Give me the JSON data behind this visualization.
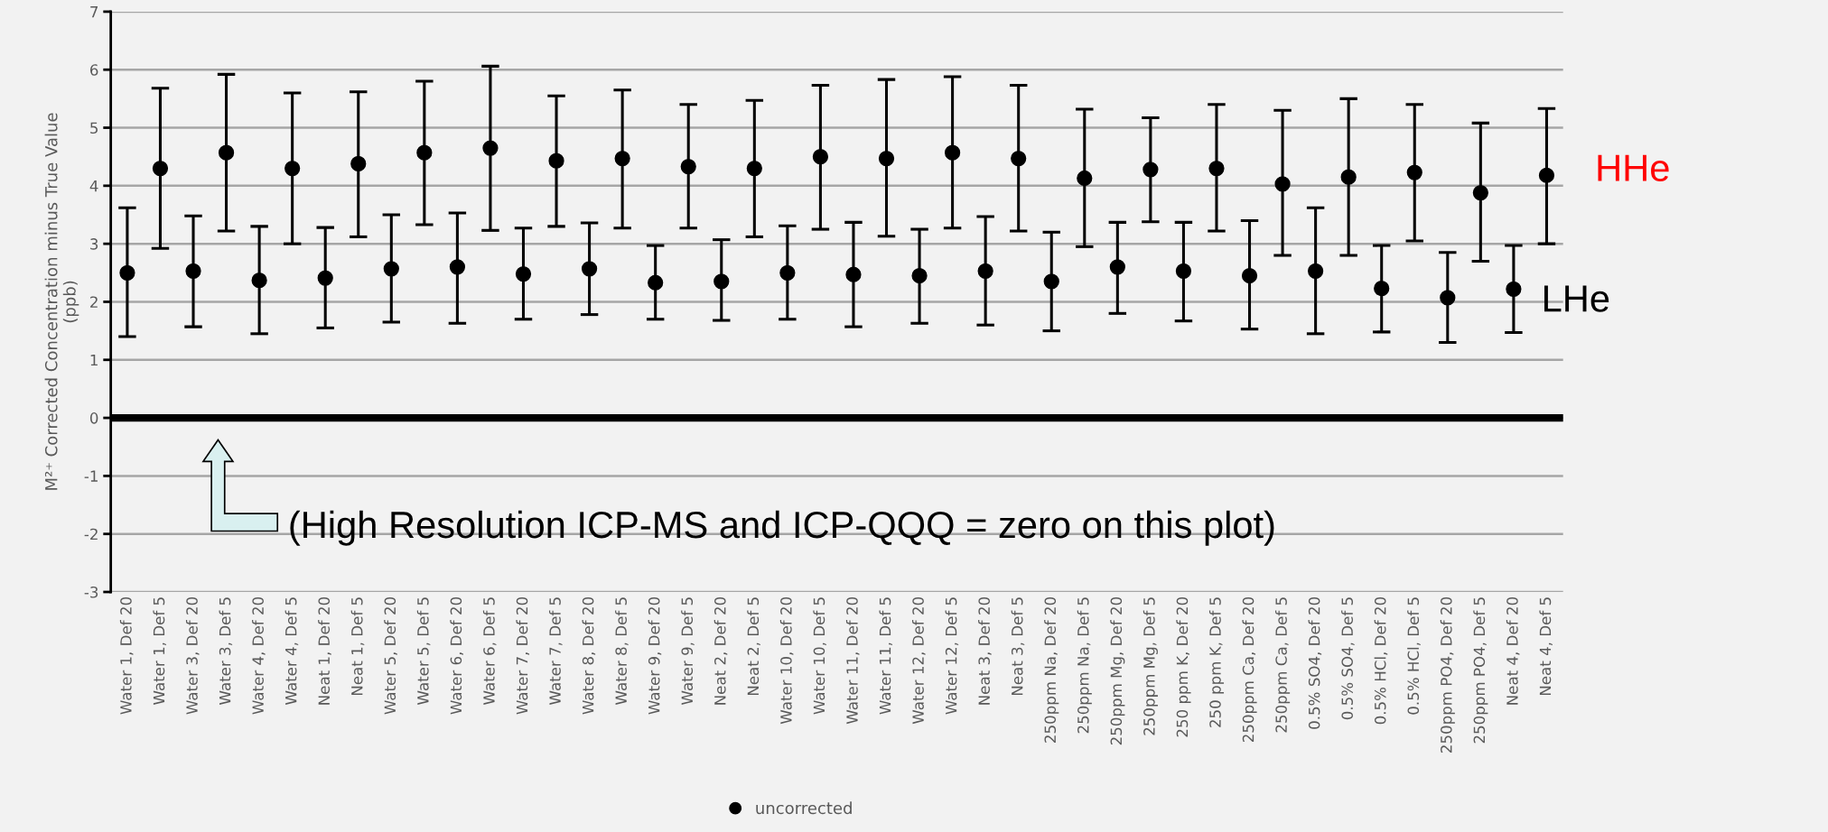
{
  "chart_data": {
    "type": "scatter",
    "ylabel": "M²⁺ Corrected Concentration minus True Value\n(ppb)",
    "categories": [
      "Water 1, Def 20",
      "Water 1, Def 5",
      "Water 3, Def 20",
      "Water 3, Def 5",
      "Water 4, Def 20",
      "Water 4, Def 5",
      "Neat 1, Def 20",
      "Neat 1, Def 5",
      "Water 5, Def 20",
      "Water 5, Def 5",
      "Water 6, Def 20",
      "Water 6, Def 5",
      "Water 7, Def 20",
      "Water 7, Def 5",
      "Water 8, Def 20",
      "Water 8, Def 5",
      "Water 9, Def 20",
      "Water 9, Def 5",
      "Neat 2, Def 20",
      "Neat 2, Def 5",
      "Water 10, Def 20",
      "Water 10, Def 5",
      "Water 11, Def 20",
      "Water 11, Def 5",
      "Water 12, Def 20",
      "Water 12, Def 5",
      "Neat 3, Def 20",
      "Neat 3, Def 5",
      "250ppm Na, Def 20",
      "250ppm Na, Def 5",
      "250ppm Mg, Def 20",
      "250ppm Mg, Def 5",
      "250 ppm K, Def 20",
      "250 ppm K, Def 5",
      "250ppm Ca, Def 20",
      "250ppm Ca, Def 5",
      "0.5% SO4, Def 20",
      "0.5% SO4, Def 5",
      "0.5% HCl, Def 20",
      "0.5% HCl, Def 5",
      "250ppm PO4, Def 20",
      "250ppm PO4, Def 5",
      "Neat 4, Def 20",
      "Neat 4, Def 5"
    ],
    "series": [
      {
        "name": "uncorrected",
        "color": "#000000",
        "values": [
          2.5,
          4.3,
          2.53,
          4.57,
          2.37,
          4.3,
          2.41,
          4.38,
          2.57,
          4.57,
          2.6,
          4.65,
          2.48,
          4.43,
          2.57,
          4.47,
          2.33,
          4.33,
          2.35,
          4.3,
          2.5,
          4.5,
          2.47,
          4.47,
          2.45,
          4.57,
          2.53,
          4.47,
          2.35,
          4.13,
          2.6,
          4.28,
          2.53,
          4.3,
          2.45,
          4.03,
          2.53,
          4.15,
          2.23,
          4.23,
          2.07,
          3.88,
          2.22,
          4.18
        ],
        "errors": [
          [
            1.4,
            3.62
          ],
          [
            2.92,
            5.68
          ],
          [
            1.57,
            3.48
          ],
          [
            3.22,
            5.92
          ],
          [
            1.45,
            3.3
          ],
          [
            3.0,
            5.6
          ],
          [
            1.55,
            3.28
          ],
          [
            3.12,
            5.62
          ],
          [
            1.65,
            3.5
          ],
          [
            3.33,
            5.8
          ],
          [
            1.63,
            3.53
          ],
          [
            3.23,
            6.06
          ],
          [
            1.7,
            3.27
          ],
          [
            3.3,
            5.55
          ],
          [
            1.78,
            3.36
          ],
          [
            3.27,
            5.65
          ],
          [
            1.7,
            2.97
          ],
          [
            3.27,
            5.4
          ],
          [
            1.68,
            3.07
          ],
          [
            3.12,
            5.47
          ],
          [
            1.7,
            3.31
          ],
          [
            3.25,
            5.73
          ],
          [
            1.57,
            3.37
          ],
          [
            3.13,
            5.83
          ],
          [
            1.63,
            3.25
          ],
          [
            3.27,
            5.88
          ],
          [
            1.6,
            3.47
          ],
          [
            3.22,
            5.73
          ],
          [
            1.5,
            3.2
          ],
          [
            2.95,
            5.32
          ],
          [
            1.8,
            3.37
          ],
          [
            3.38,
            5.17
          ],
          [
            1.67,
            3.37
          ],
          [
            3.22,
            5.4
          ],
          [
            1.53,
            3.4
          ],
          [
            2.8,
            5.3
          ],
          [
            1.45,
            3.62
          ],
          [
            2.8,
            5.5
          ],
          [
            1.48,
            2.97
          ],
          [
            3.05,
            5.4
          ],
          [
            1.3,
            2.85
          ],
          [
            2.7,
            5.08
          ],
          [
            1.47,
            2.97
          ],
          [
            3.0,
            5.33
          ]
        ]
      }
    ],
    "ylim": [
      -3,
      7
    ],
    "yticks": [
      -3,
      -2,
      -1,
      0,
      1,
      2,
      3,
      4,
      5,
      6,
      7
    ],
    "grid": "y",
    "legend": "bottom",
    "marker": "circle",
    "ref_lines": [
      {
        "axis": "y",
        "value": 0,
        "color": "#000000"
      }
    ],
    "annotations": [
      "HHe",
      "LHe",
      "(High Resolution ICP-MS and ICP-QQQ = zero on this plot)"
    ]
  }
}
